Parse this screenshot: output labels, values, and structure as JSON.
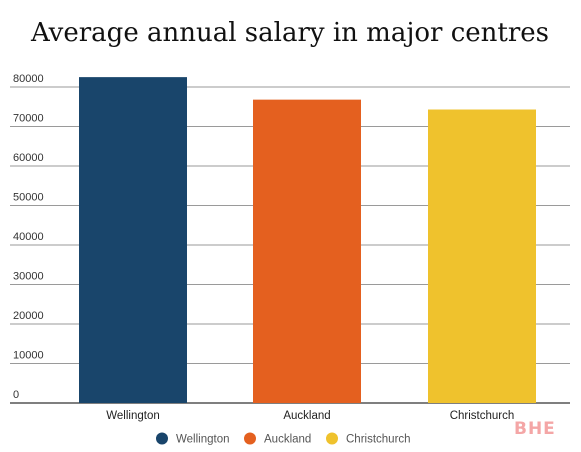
{
  "chart_data": {
    "type": "bar",
    "title": "Average annual salary in major centres",
    "categories": [
      "Wellington",
      "Auckland",
      "Christchurch"
    ],
    "values": [
      82500,
      76800,
      74300
    ],
    "colors": [
      "#19456b",
      "#e4601f",
      "#efc22d"
    ],
    "ylim": [
      0,
      80000
    ],
    "yticks": [
      "0",
      "10000",
      "20000",
      "30000",
      "40000",
      "50000",
      "60000",
      "70000",
      "80000"
    ],
    "grid": true,
    "legend": {
      "placement": "bottom",
      "entries": [
        "Wellington",
        "Auckland",
        "Christchurch"
      ]
    },
    "xlabel": "",
    "ylabel": ""
  },
  "watermark": "BHE"
}
